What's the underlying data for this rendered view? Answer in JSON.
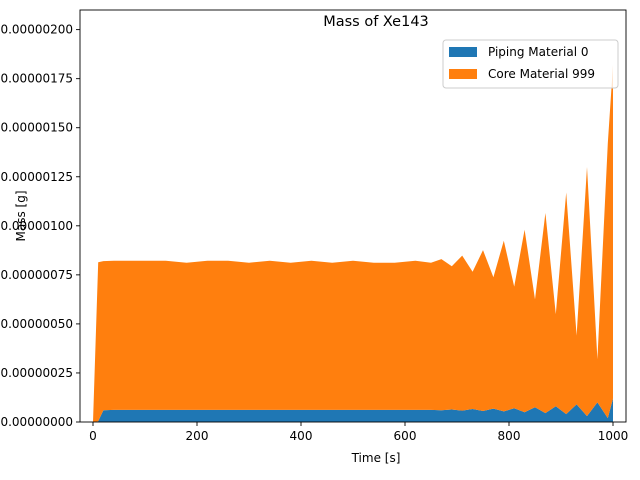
{
  "chart_data": {
    "type": "area",
    "title": "Mass of Xe143",
    "xlabel": "Time [s]",
    "ylabel": "Mass [g]",
    "xlim": [
      -25,
      1025
    ],
    "ylim": [
      0,
      2.1e-06
    ],
    "xticks": [
      0,
      200,
      400,
      600,
      800,
      1000
    ],
    "xtick_labels": [
      "0",
      "200",
      "400",
      "600",
      "800",
      "1000"
    ],
    "yticks": [
      0,
      2.5e-07,
      5e-07,
      7.5e-07,
      1e-06,
      1.25e-06,
      1.5e-06,
      1.75e-06,
      2e-06
    ],
    "ytick_labels": [
      "0.00000000",
      "0.00000025",
      "0.00000050",
      "0.00000075",
      "0.00000100",
      "0.00000125",
      "0.00000150",
      "0.00000175",
      "0.00000200"
    ],
    "stacked": true,
    "legend_position": "top-right",
    "x": [
      0,
      10,
      20,
      40,
      60,
      80,
      100,
      140,
      180,
      220,
      260,
      300,
      340,
      380,
      420,
      460,
      500,
      540,
      580,
      620,
      650,
      670,
      690,
      710,
      730,
      750,
      770,
      790,
      810,
      830,
      850,
      870,
      890,
      910,
      930,
      950,
      970,
      990,
      1000
    ],
    "series": [
      {
        "name": "Piping Material 0",
        "color": "#1f77b4",
        "values": [
          0,
          4e-09,
          6e-08,
          6.2e-08,
          6.2e-08,
          6.2e-08,
          6.2e-08,
          6.2e-08,
          6.2e-08,
          6.2e-08,
          6.2e-08,
          6.2e-08,
          6.2e-08,
          6.2e-08,
          6.2e-08,
          6.2e-08,
          6.2e-08,
          6.2e-08,
          6.2e-08,
          6.2e-08,
          6.2e-08,
          6e-08,
          6.4e-08,
          5.8e-08,
          6.6e-08,
          5.6e-08,
          6.8e-08,
          5.4e-08,
          7e-08,
          5e-08,
          7.5e-08,
          4.5e-08,
          8e-08,
          4e-08,
          9e-08,
          3e-08,
          1e-07,
          2e-08,
          1.2e-07
        ]
      },
      {
        "name": "Core Material 999",
        "color": "#ff7f0e",
        "values": [
          0,
          8.1e-07,
          7.6e-07,
          7.6e-07,
          7.6e-07,
          7.6e-07,
          7.6e-07,
          7.6e-07,
          7.5e-07,
          7.6e-07,
          7.6e-07,
          7.5e-07,
          7.6e-07,
          7.5e-07,
          7.6e-07,
          7.5e-07,
          7.6e-07,
          7.5e-07,
          7.5e-07,
          7.6e-07,
          7.5e-07,
          7.7e-07,
          7.3e-07,
          7.9e-07,
          7e-07,
          8.2e-07,
          6.7e-07,
          8.7e-07,
          6.2e-07,
          9.3e-07,
          5.5e-07,
          1.02e-06,
          4.7e-07,
          1.13e-06,
          3.5e-07,
          1.27e-06,
          2.2e-07,
          1.4e-06,
          1.7e-06
        ]
      }
    ]
  }
}
